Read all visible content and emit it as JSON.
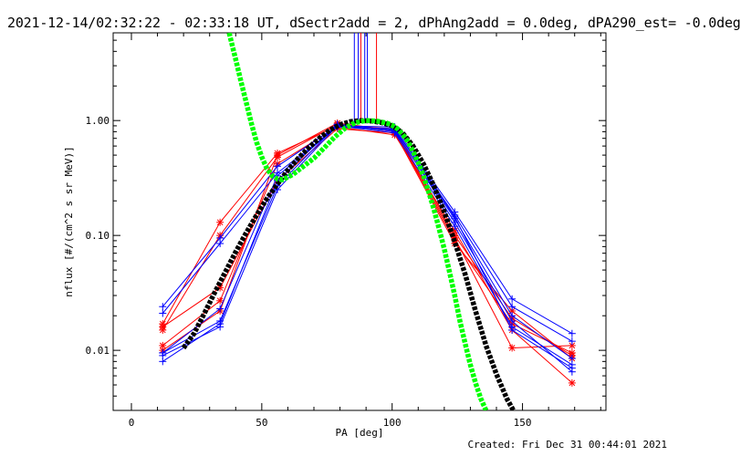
{
  "header": {
    "title": "2021-12-14/02:32:22 - 02:33:18 UT, dSectr2add = 2, dPhAng2add = 0.0deg, dPA290_est= -0.0deg"
  },
  "footer": {
    "created": "Created: Fri Dec 31 00:44:01 2021"
  },
  "chart_data": {
    "type": "line",
    "xlabel": "PA [deg]",
    "ylabel": "nflux [#/(cm^2 s sr MeV)]",
    "xlim": [
      -7,
      182
    ],
    "ylim": [
      0.003,
      5.8
    ],
    "yscale": "log",
    "xticks": [
      0,
      50,
      100,
      150
    ],
    "xtick_labels": [
      "0",
      "50",
      "100",
      "150"
    ],
    "yticks": [
      0.01,
      0.1,
      1.0
    ],
    "ytick_labels": [
      "0.01",
      "0.10",
      "1.00"
    ],
    "grid": false,
    "colors": {
      "red": "#ff0000",
      "blue": "#0000ff",
      "black": "#000000",
      "green": "#00ff00"
    },
    "series": [
      {
        "color": "red",
        "marker": "star",
        "x": [
          12,
          34,
          56,
          79,
          101,
          124,
          146,
          169
        ],
        "y": [
          0.017,
          0.13,
          0.52,
          0.9,
          0.85,
          0.1,
          0.019,
          0.009
        ]
      },
      {
        "color": "red",
        "marker": "star",
        "x": [
          12,
          34,
          56,
          79,
          101,
          124,
          146,
          169
        ],
        "y": [
          0.015,
          0.1,
          0.48,
          0.92,
          0.8,
          0.09,
          0.017,
          0.0095
        ]
      },
      {
        "color": "red",
        "marker": "star",
        "x": [
          12,
          34,
          56,
          79,
          101,
          124,
          146,
          169
        ],
        "y": [
          0.016,
          0.035,
          0.3,
          0.85,
          0.78,
          0.085,
          0.022,
          0.0085
        ]
      },
      {
        "color": "red",
        "marker": "star",
        "x": [
          12,
          34,
          56,
          79,
          101,
          124,
          146,
          169
        ],
        "y": [
          0.011,
          0.027,
          0.42,
          0.88,
          0.75,
          0.11,
          0.015,
          0.0052
        ]
      },
      {
        "color": "red",
        "marker": "star",
        "x": [
          12,
          34,
          56,
          79,
          101,
          124,
          146,
          169
        ],
        "y": [
          0.01,
          0.022,
          0.5,
          0.95,
          0.82,
          0.095,
          0.0105,
          0.011
        ]
      },
      {
        "color": "blue",
        "marker": "plus",
        "x": [
          12,
          34,
          56,
          79,
          101,
          124,
          146,
          169
        ],
        "y": [
          0.024,
          0.095,
          0.4,
          0.9,
          0.88,
          0.16,
          0.028,
          0.014
        ]
      },
      {
        "color": "blue",
        "marker": "plus",
        "x": [
          12,
          34,
          56,
          79,
          101,
          124,
          146,
          169
        ],
        "y": [
          0.021,
          0.085,
          0.35,
          0.88,
          0.85,
          0.15,
          0.024,
          0.012
        ]
      },
      {
        "color": "blue",
        "marker": "plus",
        "x": [
          12,
          34,
          56,
          79,
          101,
          124,
          146,
          169
        ],
        "y": [
          0.0095,
          0.018,
          0.27,
          0.92,
          0.8,
          0.14,
          0.02,
          0.0085
        ]
      },
      {
        "color": "blue",
        "marker": "plus",
        "x": [
          12,
          34,
          56,
          79,
          101,
          124,
          146,
          169
        ],
        "y": [
          0.009,
          0.016,
          0.25,
          0.9,
          0.78,
          0.12,
          0.016,
          0.0075
        ]
      },
      {
        "color": "blue",
        "marker": "plus",
        "x": [
          12,
          34,
          56,
          79,
          101,
          124,
          146,
          169
        ],
        "y": [
          0.008,
          0.017,
          0.3,
          0.93,
          0.82,
          0.13,
          0.018,
          0.0065
        ]
      },
      {
        "color": "blue",
        "marker": "plus",
        "x": [
          12,
          34,
          56,
          79,
          101,
          124,
          146,
          169
        ],
        "y": [
          0.0095,
          0.023,
          0.33,
          0.88,
          0.84,
          0.145,
          0.015,
          0.007
        ]
      }
    ],
    "spikes": [
      {
        "color": "blue",
        "x": 85.5
      },
      {
        "color": "blue",
        "x": 87
      },
      {
        "color": "red",
        "x": 88
      },
      {
        "color": "blue",
        "x": 89.5
      },
      {
        "color": "blue",
        "x": 90.5
      },
      {
        "color": "red",
        "x": 94
      }
    ],
    "fits": [
      {
        "color": "black",
        "x": [
          20,
          24,
          28,
          32,
          36,
          40,
          44,
          48,
          52,
          56,
          60,
          64,
          68,
          72,
          76,
          80,
          84,
          88,
          92,
          96,
          100,
          104,
          108,
          112,
          116,
          120,
          124,
          128,
          132,
          136,
          140,
          144,
          146.5
        ],
        "y": [
          0.0105,
          0.014,
          0.021,
          0.032,
          0.048,
          0.072,
          0.105,
          0.15,
          0.21,
          0.28,
          0.37,
          0.47,
          0.58,
          0.7,
          0.82,
          0.92,
          0.98,
          1.0,
          0.99,
          0.96,
          0.9,
          0.78,
          0.6,
          0.42,
          0.27,
          0.16,
          0.088,
          0.046,
          0.022,
          0.011,
          0.0062,
          0.0038,
          0.003
        ]
      },
      {
        "color": "green",
        "x": [
          37.5,
          40,
          42,
          44,
          46,
          48,
          50,
          52,
          54,
          56,
          58,
          62,
          66,
          70,
          74,
          78,
          82,
          86,
          90,
          94,
          98,
          100,
          102,
          104,
          106,
          108,
          110,
          112,
          114,
          116,
          118,
          120,
          122,
          124,
          126,
          128,
          130,
          132,
          134,
          136
        ],
        "y": [
          5.8,
          3.4,
          2.2,
          1.45,
          0.95,
          0.65,
          0.48,
          0.38,
          0.33,
          0.31,
          0.305,
          0.34,
          0.4,
          0.47,
          0.58,
          0.72,
          0.86,
          0.96,
          1.0,
          0.99,
          0.95,
          0.91,
          0.85,
          0.76,
          0.66,
          0.54,
          0.43,
          0.33,
          0.24,
          0.17,
          0.115,
          0.076,
          0.048,
          0.03,
          0.018,
          0.0115,
          0.0075,
          0.0052,
          0.0038,
          0.003
        ]
      }
    ]
  }
}
